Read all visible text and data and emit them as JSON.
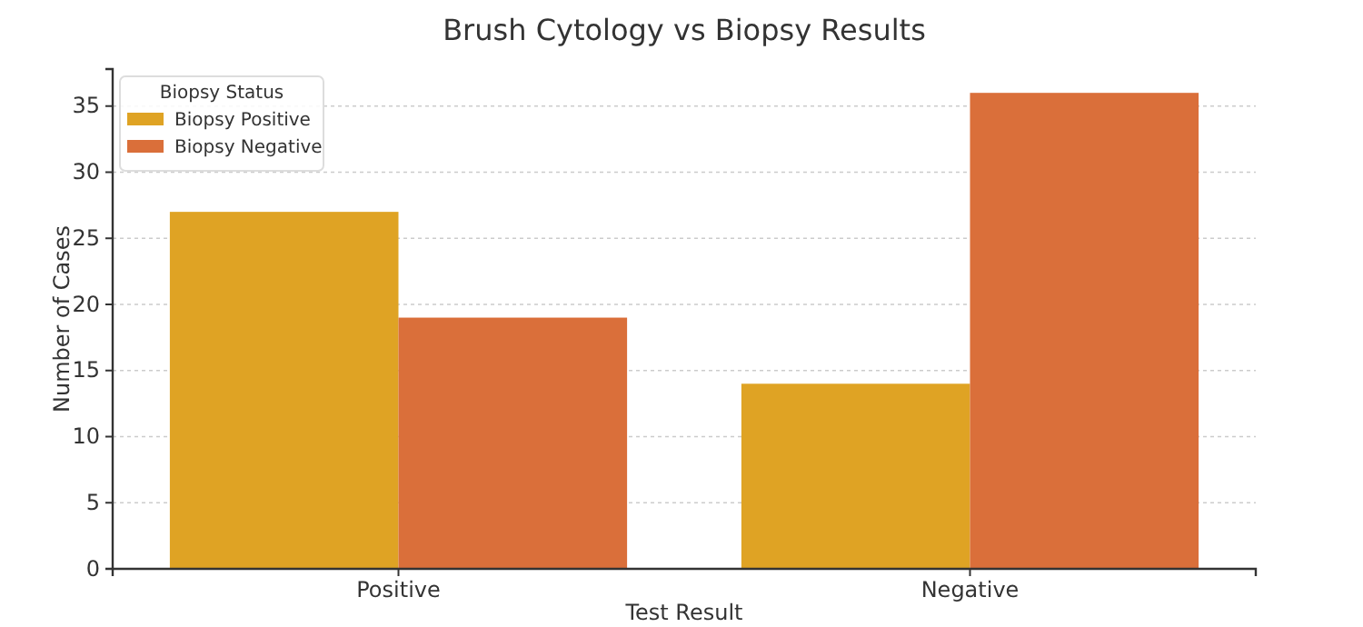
{
  "chart_data": {
    "type": "bar",
    "title": "Brush Cytology vs Biopsy Results",
    "xlabel": "Test Result",
    "ylabel": "Number of Cases",
    "legend_title": "Biopsy Status",
    "categories": [
      "Positive",
      "Negative"
    ],
    "series": [
      {
        "name": "Biopsy Positive",
        "color": "#dfa324",
        "values": [
          27,
          14
        ]
      },
      {
        "name": "Biopsy Negative",
        "color": "#da6f3a",
        "values": [
          19,
          36
        ]
      }
    ],
    "ylim": [
      0,
      37.8
    ],
    "yticks": [
      0,
      5,
      10,
      15,
      20,
      25,
      30,
      35
    ],
    "grid": "y",
    "legend": "top left"
  }
}
